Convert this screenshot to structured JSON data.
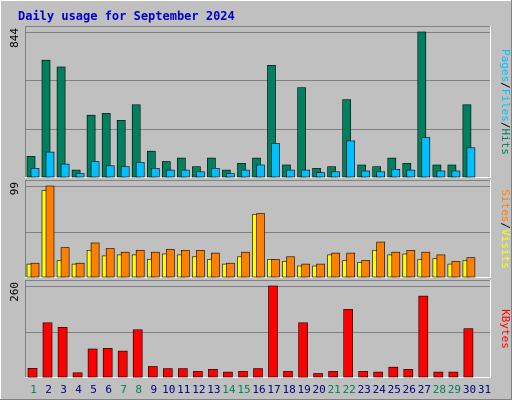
{
  "title": "Daily usage for September 2024",
  "colors": {
    "background": "#c0c0c0",
    "plot_background": "#c0c0c0",
    "title": "#0000cc",
    "hits": "#00805c",
    "files": "#00c0ff",
    "pages": "#00c0ff",
    "visits": "#ffff00",
    "sites": "#ff8000",
    "kbytes": "#ff0000",
    "weekday_label": "#000080",
    "weekend_label": "#00805c"
  },
  "chart_data": [
    {
      "type": "bar",
      "panel": "hits-files-pages",
      "ymax_label": "844",
      "ylabel_parts": [
        {
          "text": "Pages",
          "color": "#00c0ff"
        },
        {
          "text": "/",
          "color": "#000000"
        },
        {
          "text": "Files",
          "color": "#00c0ff"
        },
        {
          "text": "/",
          "color": "#000000"
        },
        {
          "text": "Hits",
          "color": "#00805c"
        }
      ],
      "ylim": [
        0,
        844
      ],
      "categories": [
        "1",
        "2",
        "3",
        "4",
        "5",
        "6",
        "7",
        "8",
        "9",
        "10",
        "11",
        "12",
        "13",
        "14",
        "15",
        "16",
        "17",
        "18",
        "19",
        "20",
        "21",
        "22",
        "23",
        "24",
        "25",
        "26",
        "27",
        "28",
        "29",
        "30",
        "31"
      ],
      "series": [
        {
          "name": "Hits",
          "color": "#00805c",
          "values": [
            120,
            680,
            640,
            40,
            360,
            370,
            330,
            420,
            150,
            90,
            110,
            60,
            110,
            40,
            80,
            110,
            650,
            70,
            520,
            50,
            60,
            450,
            70,
            60,
            110,
            80,
            844,
            70,
            70,
            420,
            0
          ]
        },
        {
          "name": "Files",
          "color": "#00c0ff",
          "values": [
            50,
            145,
            75,
            20,
            90,
            65,
            60,
            85,
            50,
            40,
            40,
            30,
            50,
            20,
            40,
            70,
            195,
            40,
            40,
            25,
            30,
            210,
            35,
            30,
            45,
            40,
            230,
            35,
            35,
            170,
            0
          ]
        },
        {
          "name": "Pages",
          "color": "#00c0ff",
          "values": [
            0,
            0,
            0,
            0,
            0,
            0,
            0,
            0,
            0,
            0,
            0,
            0,
            0,
            0,
            0,
            0,
            0,
            0,
            0,
            0,
            0,
            0,
            0,
            0,
            0,
            0,
            0,
            0,
            0,
            0,
            0
          ]
        }
      ]
    },
    {
      "type": "bar",
      "panel": "visits-sites",
      "ymax_label": "99",
      "ylabel_parts": [
        {
          "text": "Sites",
          "color": "#ff8000"
        },
        {
          "text": "/",
          "color": "#000000"
        },
        {
          "text": "Visits",
          "color": "#ffff00"
        }
      ],
      "ylim": [
        0,
        99
      ],
      "categories": [
        "1",
        "2",
        "3",
        "4",
        "5",
        "6",
        "7",
        "8",
        "9",
        "10",
        "11",
        "12",
        "13",
        "14",
        "15",
        "16",
        "17",
        "18",
        "19",
        "20",
        "21",
        "22",
        "23",
        "24",
        "25",
        "26",
        "27",
        "28",
        "29",
        "30",
        "31"
      ],
      "series": [
        {
          "name": "Visits",
          "color": "#ffff00",
          "values": [
            14,
            94,
            18,
            14,
            29,
            23,
            24,
            24,
            19,
            25,
            24,
            22,
            19,
            14,
            22,
            68,
            19,
            17,
            12,
            12,
            24,
            18,
            16,
            29,
            24,
            25,
            19,
            20,
            14,
            18,
            0
          ]
        },
        {
          "name": "Sites",
          "color": "#ff8000",
          "values": [
            15,
            99,
            32,
            15,
            37,
            31,
            27,
            29,
            27,
            30,
            29,
            29,
            26,
            15,
            27,
            69,
            19,
            22,
            14,
            14,
            26,
            26,
            18,
            38,
            27,
            29,
            27,
            24,
            17,
            21,
            0
          ]
        }
      ]
    },
    {
      "type": "bar",
      "panel": "kbytes",
      "ymax_label": "260",
      "ylabel_parts": [
        {
          "text": "KBytes",
          "color": "#ff0000"
        }
      ],
      "ylim": [
        0,
        260
      ],
      "categories": [
        "1",
        "2",
        "3",
        "4",
        "5",
        "6",
        "7",
        "8",
        "9",
        "10",
        "11",
        "12",
        "13",
        "14",
        "15",
        "16",
        "17",
        "18",
        "19",
        "20",
        "21",
        "22",
        "23",
        "24",
        "25",
        "26",
        "27",
        "28",
        "29",
        "30",
        "31"
      ],
      "series": [
        {
          "name": "KBytes",
          "color": "#ff0000",
          "values": [
            25,
            155,
            142,
            12,
            80,
            82,
            74,
            135,
            30,
            24,
            24,
            16,
            22,
            14,
            16,
            24,
            260,
            16,
            155,
            10,
            16,
            193,
            16,
            14,
            28,
            22,
            231,
            14,
            14,
            138,
            0
          ]
        }
      ]
    }
  ],
  "x_labels": [
    {
      "text": "1",
      "weekend": true
    },
    {
      "text": "2",
      "weekend": false
    },
    {
      "text": "3",
      "weekend": false
    },
    {
      "text": "4",
      "weekend": false
    },
    {
      "text": "5",
      "weekend": false
    },
    {
      "text": "6",
      "weekend": false
    },
    {
      "text": "7",
      "weekend": true
    },
    {
      "text": "8",
      "weekend": true
    },
    {
      "text": "9",
      "weekend": false
    },
    {
      "text": "10",
      "weekend": false
    },
    {
      "text": "11",
      "weekend": false
    },
    {
      "text": "12",
      "weekend": false
    },
    {
      "text": "13",
      "weekend": false
    },
    {
      "text": "14",
      "weekend": true
    },
    {
      "text": "15",
      "weekend": true
    },
    {
      "text": "16",
      "weekend": false
    },
    {
      "text": "17",
      "weekend": false
    },
    {
      "text": "18",
      "weekend": false
    },
    {
      "text": "19",
      "weekend": false
    },
    {
      "text": "20",
      "weekend": false
    },
    {
      "text": "21",
      "weekend": true
    },
    {
      "text": "22",
      "weekend": true
    },
    {
      "text": "23",
      "weekend": false
    },
    {
      "text": "24",
      "weekend": false
    },
    {
      "text": "25",
      "weekend": false
    },
    {
      "text": "26",
      "weekend": false
    },
    {
      "text": "27",
      "weekend": false
    },
    {
      "text": "28",
      "weekend": true
    },
    {
      "text": "29",
      "weekend": true
    },
    {
      "text": "30",
      "weekend": false
    },
    {
      "text": "31",
      "weekend": false
    }
  ]
}
